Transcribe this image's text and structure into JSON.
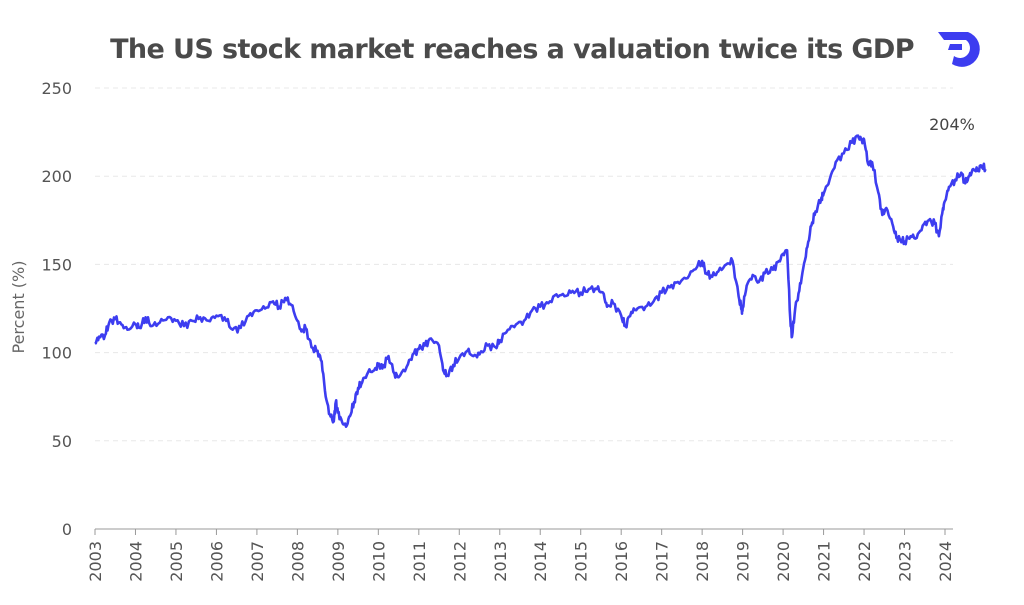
{
  "chart_data": {
    "type": "line",
    "title": "The US stock market reaches a valuation twice its GDP",
    "ylabel": "Percent (%)",
    "xlabel": "",
    "ylim": [
      0,
      250
    ],
    "xlim": [
      2003,
      2024.1
    ],
    "yticks": [
      0,
      50,
      100,
      150,
      200,
      250
    ],
    "xticks": [
      "2003",
      "2004",
      "2005",
      "2006",
      "2007",
      "2008",
      "2009",
      "2010",
      "2011",
      "2012",
      "2013",
      "2014",
      "2015",
      "2016",
      "2017",
      "2018",
      "2019",
      "2020",
      "2021",
      "2022",
      "2023",
      "2024"
    ],
    "grid": true,
    "legend": "none",
    "annotation": {
      "text": "204%",
      "x": 2024.0,
      "y": 204
    },
    "line_color": "#3d3df0",
    "series": [
      {
        "points": [
          [
            2003.0,
            105
          ],
          [
            2003.1,
            109
          ],
          [
            2003.25,
            110
          ],
          [
            2003.35,
            117
          ],
          [
            2003.5,
            119
          ],
          [
            2003.65,
            116
          ],
          [
            2003.8,
            113
          ],
          [
            2004.0,
            116
          ],
          [
            2004.1,
            114
          ],
          [
            2004.25,
            120
          ],
          [
            2004.4,
            115
          ],
          [
            2004.6,
            117
          ],
          [
            2004.8,
            120
          ],
          [
            2005.0,
            118
          ],
          [
            2005.2,
            115
          ],
          [
            2005.4,
            118
          ],
          [
            2005.6,
            120
          ],
          [
            2005.8,
            118
          ],
          [
            2006.0,
            121
          ],
          [
            2006.2,
            120
          ],
          [
            2006.4,
            113
          ],
          [
            2006.6,
            114
          ],
          [
            2006.8,
            121
          ],
          [
            2007.0,
            124
          ],
          [
            2007.2,
            125
          ],
          [
            2007.4,
            129
          ],
          [
            2007.55,
            126
          ],
          [
            2007.7,
            131
          ],
          [
            2007.85,
            127
          ],
          [
            2008.0,
            118
          ],
          [
            2008.1,
            112
          ],
          [
            2008.2,
            114
          ],
          [
            2008.35,
            103
          ],
          [
            2008.5,
            101
          ],
          [
            2008.6,
            95
          ],
          [
            2008.7,
            75
          ],
          [
            2008.8,
            65
          ],
          [
            2008.9,
            61
          ],
          [
            2008.95,
            72
          ],
          [
            2009.0,
            66
          ],
          [
            2009.1,
            61
          ],
          [
            2009.2,
            58
          ],
          [
            2009.3,
            64
          ],
          [
            2009.4,
            72
          ],
          [
            2009.5,
            80
          ],
          [
            2009.6,
            83
          ],
          [
            2009.75,
            89
          ],
          [
            2009.9,
            90
          ],
          [
            2010.0,
            93
          ],
          [
            2010.1,
            91
          ],
          [
            2010.25,
            98
          ],
          [
            2010.4,
            88
          ],
          [
            2010.5,
            86
          ],
          [
            2010.7,
            92
          ],
          [
            2010.85,
            99
          ],
          [
            2011.0,
            102
          ],
          [
            2011.15,
            104
          ],
          [
            2011.3,
            108
          ],
          [
            2011.5,
            104
          ],
          [
            2011.6,
            90
          ],
          [
            2011.7,
            87
          ],
          [
            2011.85,
            93
          ],
          [
            2012.0,
            97
          ],
          [
            2012.2,
            101
          ],
          [
            2012.35,
            98
          ],
          [
            2012.5,
            99
          ],
          [
            2012.7,
            104
          ],
          [
            2012.9,
            103
          ],
          [
            2013.0,
            107
          ],
          [
            2013.2,
            113
          ],
          [
            2013.4,
            116
          ],
          [
            2013.6,
            118
          ],
          [
            2013.8,
            124
          ],
          [
            2014.0,
            126
          ],
          [
            2014.2,
            128
          ],
          [
            2014.4,
            133
          ],
          [
            2014.6,
            132
          ],
          [
            2014.8,
            135
          ],
          [
            2015.0,
            134
          ],
          [
            2015.2,
            136
          ],
          [
            2015.4,
            136
          ],
          [
            2015.55,
            134
          ],
          [
            2015.65,
            126
          ],
          [
            2015.8,
            128
          ],
          [
            2016.0,
            121
          ],
          [
            2016.1,
            115
          ],
          [
            2016.25,
            123
          ],
          [
            2016.4,
            125
          ],
          [
            2016.6,
            126
          ],
          [
            2016.8,
            129
          ],
          [
            2017.0,
            134
          ],
          [
            2017.2,
            137
          ],
          [
            2017.4,
            140
          ],
          [
            2017.6,
            142
          ],
          [
            2017.8,
            147
          ],
          [
            2018.0,
            152
          ],
          [
            2018.1,
            145
          ],
          [
            2018.25,
            143
          ],
          [
            2018.4,
            146
          ],
          [
            2018.6,
            150
          ],
          [
            2018.75,
            152
          ],
          [
            2018.9,
            132
          ],
          [
            2018.98,
            124
          ],
          [
            2019.0,
            125
          ],
          [
            2019.1,
            138
          ],
          [
            2019.25,
            144
          ],
          [
            2019.4,
            140
          ],
          [
            2019.55,
            145
          ],
          [
            2019.75,
            147
          ],
          [
            2019.9,
            152
          ],
          [
            2020.0,
            156
          ],
          [
            2020.1,
            158
          ],
          [
            2020.18,
            118
          ],
          [
            2020.22,
            109
          ],
          [
            2020.3,
            125
          ],
          [
            2020.4,
            135
          ],
          [
            2020.5,
            148
          ],
          [
            2020.6,
            160
          ],
          [
            2020.7,
            172
          ],
          [
            2020.8,
            180
          ],
          [
            2020.95,
            188
          ],
          [
            2021.0,
            190
          ],
          [
            2021.15,
            198
          ],
          [
            2021.3,
            208
          ],
          [
            2021.5,
            213
          ],
          [
            2021.7,
            219
          ],
          [
            2021.85,
            223
          ],
          [
            2021.95,
            220
          ],
          [
            2022.0,
            221
          ],
          [
            2022.1,
            207
          ],
          [
            2022.2,
            208
          ],
          [
            2022.35,
            191
          ],
          [
            2022.45,
            178
          ],
          [
            2022.55,
            182
          ],
          [
            2022.7,
            173
          ],
          [
            2022.8,
            165
          ],
          [
            2022.9,
            164
          ],
          [
            2023.0,
            163
          ],
          [
            2023.15,
            166
          ],
          [
            2023.3,
            165
          ],
          [
            2023.45,
            172
          ],
          [
            2023.6,
            175
          ],
          [
            2023.75,
            173
          ],
          [
            2023.85,
            166
          ],
          [
            2023.95,
            182
          ],
          [
            2024.0,
            186
          ],
          [
            2024.1,
            194
          ],
          [
            2024.25,
            198
          ],
          [
            2024.4,
            202
          ],
          [
            2024.5,
            196
          ],
          [
            2024.6,
            200
          ],
          [
            2024.7,
            204
          ],
          [
            2024.8,
            203
          ],
          [
            2024.9,
            206
          ],
          [
            2025.0,
            204
          ]
        ]
      }
    ]
  }
}
